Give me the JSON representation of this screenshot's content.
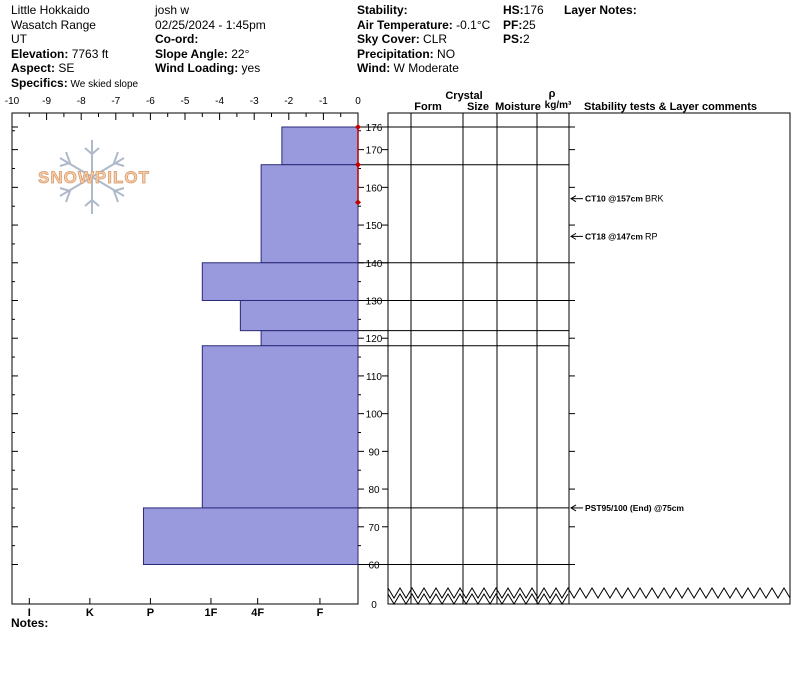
{
  "header": {
    "location": "Little Hokkaido",
    "range": "Wasatch Range",
    "state": "UT",
    "elevation_label": "Elevation:",
    "elevation_value": " 7763 ft",
    "aspect_label": "Aspect:",
    "aspect_value": " SE",
    "specifics_label": "Specifics:",
    "specifics_value": " We skied slope",
    "observer": "josh w",
    "datetime": "02/25/2024 - 1:45pm",
    "coord_label": "Co-ord:",
    "slope_label": "Slope Angle:",
    "slope_value": " 22°",
    "wind_loading_label": "Wind Loading:",
    "wind_loading_value": " yes",
    "stability_label": "Stability:",
    "air_temp_label": "Air Temperature:",
    "air_temp_value": " -0.1°C",
    "sky_label": "Sky Cover:",
    "sky_value": " CLR",
    "precip_label": "Precipitation:",
    "precip_value": " NO",
    "wind_label": "Wind:",
    "wind_value": "  W Moderate",
    "hs_label": "HS:",
    "hs_value": "176",
    "pf_label": "PF:",
    "pf_value": "25",
    "ps_label": "PS:",
    "ps_value": "2",
    "layer_notes_label": "Layer Notes:"
  },
  "logo_text": "SNOWPILOT",
  "notes_label": "Notes:",
  "table_headers": {
    "crystal": "Crystal",
    "form": "Form",
    "size": "Size",
    "moisture": "Moisture",
    "rho": "ρ",
    "density": "kg/m³",
    "stability": "Stability tests & Layer comments"
  },
  "colors": {
    "hardness_fill": "#9999dd",
    "temp_marker": "#c00000",
    "frame": "#000000"
  },
  "chart_data": {
    "type": "bar",
    "x_top_ticks": [
      "-10",
      "-9",
      "-8",
      "-7",
      "-6",
      "-5",
      "-4",
      "-3",
      "-2",
      "-1",
      "0"
    ],
    "x_top_range": [
      -10,
      0
    ],
    "hardness_ticks": [
      "I",
      "K",
      "P",
      "1F",
      "4F",
      "F"
    ],
    "hardness_tick_values": [
      -9.5,
      -7.75,
      -6.0,
      -4.25,
      -2.9,
      -1.1
    ],
    "height_ticks": [
      "176",
      "170",
      "160",
      "150",
      "140",
      "130",
      "120",
      "110",
      "100",
      "90",
      "80",
      "70",
      "60",
      "0"
    ],
    "height_range": [
      55,
      176
    ],
    "layers": [
      {
        "top": 176,
        "bottom": 166,
        "hardness": -2.2
      },
      {
        "top": 166,
        "bottom": 140,
        "hardness": -2.8
      },
      {
        "top": 140,
        "bottom": 130,
        "hardness": -4.5
      },
      {
        "top": 130,
        "bottom": 122,
        "hardness": -3.4
      },
      {
        "top": 122,
        "bottom": 118,
        "hardness": -2.8
      },
      {
        "top": 118,
        "bottom": 75,
        "hardness": -4.5
      },
      {
        "top": 75,
        "bottom": 60,
        "hardness": -6.2
      }
    ],
    "temperature_profile": [
      {
        "height": 176,
        "temp": 0
      },
      {
        "height": 166,
        "temp": 0
      },
      {
        "height": 156,
        "temp": 0
      }
    ],
    "stability_tests": [
      {
        "height": 157,
        "label": "CT10 @157cm",
        "fracture": "BRK"
      },
      {
        "height": 147,
        "label": "CT18 @147cm",
        "fracture": "RP"
      },
      {
        "height": 75,
        "label": "PST95/100 (End) @75cm",
        "fracture": ""
      }
    ]
  }
}
